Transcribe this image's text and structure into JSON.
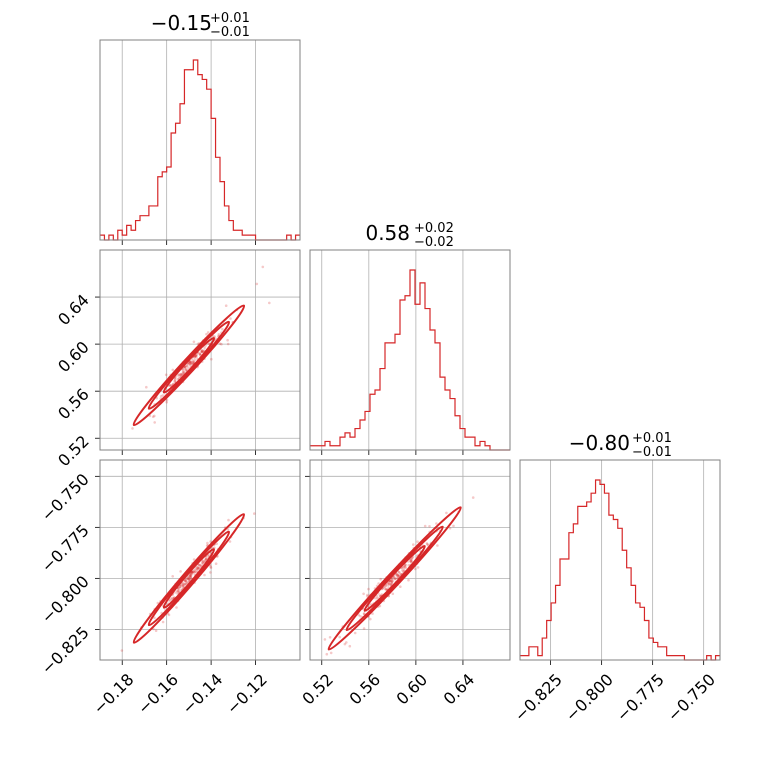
{
  "chart_data": {
    "type": "corner",
    "color": "#d62728",
    "grid": true,
    "parameters": [
      {
        "title": {
          "main": "−0.15",
          "sup": "+0.01",
          "sub": "−0.01"
        },
        "center": -0.15,
        "sigma": 0.0075,
        "range": [
          -0.19,
          -0.1
        ],
        "ticks": [
          -0.18,
          -0.16,
          -0.14,
          -0.12
        ],
        "tick_labels": [
          "−0.18",
          "−0.16",
          "−0.14",
          "−0.12"
        ]
      },
      {
        "title": {
          "main": "0.58",
          "sup": "+0.02",
          "sub": "−0.02"
        },
        "center": 0.582,
        "sigma": 0.017,
        "range": [
          0.51,
          0.68
        ],
        "ticks": [
          0.52,
          0.56,
          0.6,
          0.64
        ],
        "tick_labels": [
          "0.52",
          "0.56",
          "0.60",
          "0.64"
        ]
      },
      {
        "title": {
          "main": "−0.80",
          "sup": "+0.01",
          "sub": "−0.01"
        },
        "center": -0.8,
        "sigma": 0.0105,
        "range": [
          -0.84,
          -0.742
        ],
        "ticks": [
          -0.825,
          -0.8,
          -0.775,
          -0.75
        ],
        "tick_labels": [
          "−0.825",
          "−0.800",
          "−0.775",
          "−0.750"
        ]
      }
    ],
    "histograms": [
      {
        "bin_range": [
          -0.19,
          -0.1
        ],
        "counts": [
          1,
          0,
          1,
          0,
          2,
          1,
          3,
          2,
          4,
          5,
          5,
          7,
          7,
          13,
          14,
          15,
          22,
          24,
          28,
          35,
          35,
          37,
          34,
          33,
          31,
          25,
          17,
          12,
          7,
          4,
          2,
          2,
          1,
          1,
          1,
          0,
          0,
          0,
          0,
          0,
          0,
          0,
          1,
          0,
          1
        ]
      },
      {
        "bin_range": [
          0.51,
          0.68
        ],
        "counts": [
          1,
          1,
          1,
          2,
          1,
          1,
          3,
          4,
          3,
          5,
          7,
          9,
          13,
          14,
          19,
          25,
          25,
          27,
          35,
          36,
          42,
          34,
          39,
          33,
          28,
          25,
          17,
          14,
          12,
          8,
          5,
          3,
          3,
          1,
          2,
          1,
          0,
          0,
          0,
          0
        ]
      },
      {
        "bin_range": [
          -0.84,
          -0.742
        ],
        "counts": [
          1,
          1,
          3,
          3,
          1,
          5,
          9,
          13,
          17,
          23,
          23,
          29,
          31,
          35,
          35,
          36,
          38,
          41,
          40,
          38,
          33,
          32,
          30,
          25,
          21,
          17,
          13,
          12,
          9,
          5,
          4,
          3,
          3,
          1,
          1,
          1,
          1,
          0,
          0,
          0,
          0,
          0,
          1,
          0,
          1
        ]
      }
    ],
    "pairs": [
      {
        "x_param": 0,
        "y_param": 1,
        "relation": "y = 0.582 + 2.05*(x+0.15)"
      },
      {
        "x_param": 0,
        "y_param": 2,
        "relation": "y = -0.80 + 1.27*(x+0.15)"
      },
      {
        "x_param": 1,
        "y_param": 2,
        "relation": "y = -0.80 + 0.62*(x-0.582)"
      }
    ]
  }
}
